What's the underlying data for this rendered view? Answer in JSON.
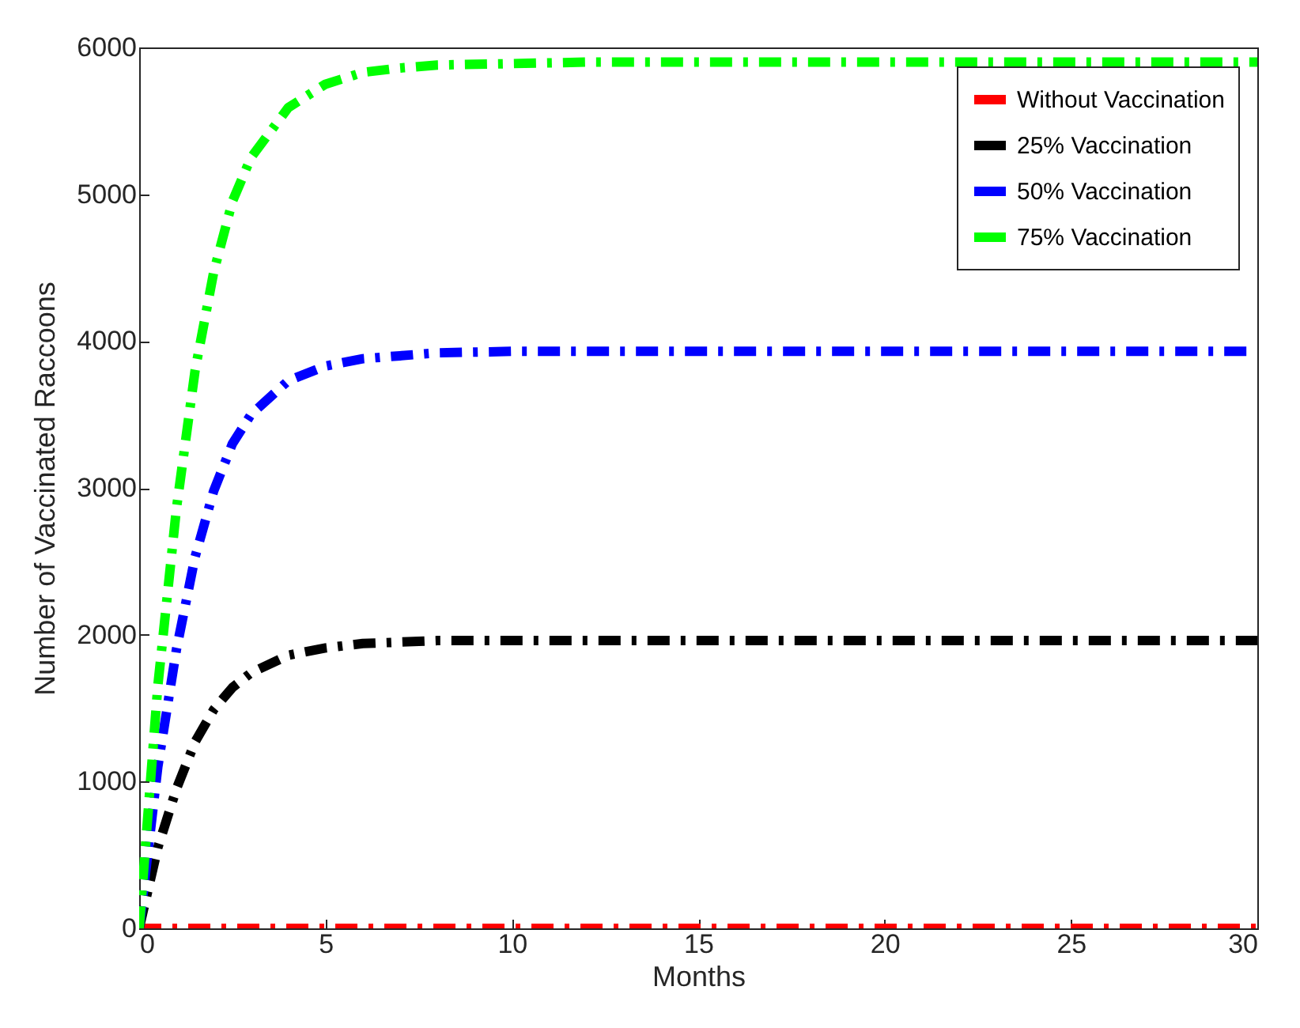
{
  "chart_data": {
    "type": "line",
    "xlabel": "Months",
    "ylabel": "Number of Vaccinated Raccoons",
    "x": [
      0,
      0.5,
      1,
      1.5,
      2,
      2.5,
      3,
      4,
      5,
      6,
      7,
      8,
      10,
      12,
      15,
      20,
      25,
      30
    ],
    "series": [
      {
        "name": "Without Vaccination",
        "color": "#ff0000",
        "values": [
          0,
          0,
          0,
          0,
          0,
          0,
          0,
          0,
          0,
          0,
          0,
          0,
          0,
          0,
          0,
          0,
          0,
          0
        ]
      },
      {
        "name": "25% Vaccination",
        "color": "#000000",
        "values": [
          0,
          550,
          950,
          1270,
          1490,
          1640,
          1740,
          1860,
          1910,
          1940,
          1950,
          1960,
          1960,
          1960,
          1960,
          1960,
          1960,
          1960
        ]
      },
      {
        "name": "50% Vaccination",
        "color": "#0000ff",
        "values": [
          0,
          1100,
          1900,
          2530,
          2980,
          3300,
          3500,
          3730,
          3830,
          3880,
          3900,
          3920,
          3930,
          3930,
          3930,
          3930,
          3930,
          3930
        ]
      },
      {
        "name": "75% Vaccination",
        "color": "#00ff00",
        "values": [
          0,
          1650,
          2860,
          3800,
          4470,
          4950,
          5250,
          5590,
          5750,
          5830,
          5860,
          5880,
          5890,
          5900,
          5900,
          5900,
          5900,
          5900
        ]
      }
    ],
    "xlim": [
      0,
      30
    ],
    "xticks": [
      0,
      5,
      10,
      15,
      20,
      25,
      30
    ],
    "ylim": [
      0,
      6000
    ],
    "yticks": [
      0,
      1000,
      2000,
      3000,
      4000,
      5000,
      6000
    ],
    "grid": false,
    "legend": "top right",
    "marker": "none",
    "line_style": "dashed"
  }
}
